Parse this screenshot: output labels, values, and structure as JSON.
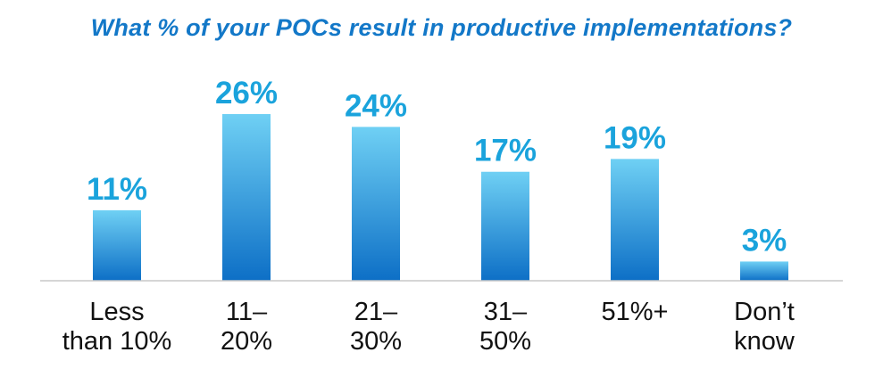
{
  "chart_data": {
    "type": "bar",
    "title": "What % of your POCs result in productive implementations?",
    "categories": [
      [
        "Less",
        "than 10%"
      ],
      [
        "11–",
        "20%"
      ],
      [
        "21–",
        "30%"
      ],
      [
        "31–",
        "50%"
      ],
      [
        "51%+"
      ],
      [
        "Don’t",
        "know"
      ]
    ],
    "values": [
      11,
      26,
      24,
      17,
      19,
      3
    ],
    "value_labels": [
      "11%",
      "26%",
      "24%",
      "17%",
      "19%",
      "3%"
    ],
    "xlabel": "",
    "ylabel": "",
    "ylim": [
      0,
      26
    ],
    "grid": false,
    "legend": "none"
  },
  "colors": {
    "title": "#1378c8",
    "value_label": "#1aa3dc",
    "bar_top": "#6fd0f4",
    "bar_bottom": "#0d6fc6",
    "baseline": "#c8c8c8",
    "category_label": "#111111"
  }
}
